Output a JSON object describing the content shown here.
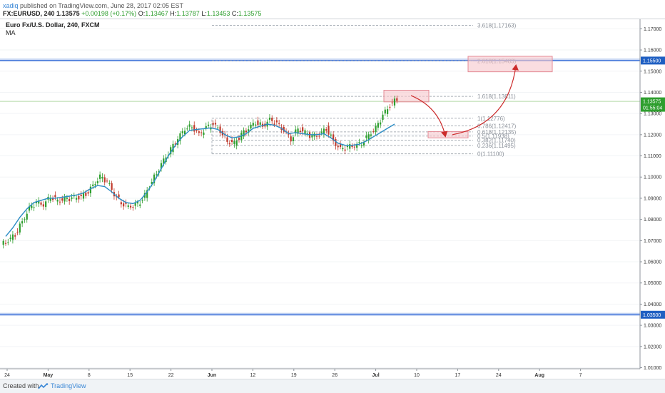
{
  "header": {
    "publisher_user": "xadiq",
    "published_text": "published on TradingView.com, June 28, 2017 02:05 EST",
    "symbol": "FX:EURUSD, 240",
    "last": "1.13575",
    "change": "+0.00198 (+0.17%)",
    "open_label": "O:",
    "open": "1.13467",
    "high_label": "H:",
    "high": "1.13787",
    "low_label": "L:",
    "low": "1.13453",
    "close_label": "C:",
    "close": "1.13575"
  },
  "legend": {
    "title": "Euro Fx/U.S. Dollar, 240, FXCM",
    "indicator": "MA"
  },
  "footer": {
    "created_with": "Created with",
    "brand": "TradingView"
  },
  "colors": {
    "up": "#2e9e2e",
    "down": "#c0392b",
    "ma": "#2b8cc4",
    "hline": "#3a6fd8",
    "fib": "#aab0b8",
    "arrow": "#cc2b2b",
    "box_fill": "#f7c6cc",
    "box_stroke": "#e48a95",
    "price_tag_bg": "#1f5fc2",
    "last_tag_bg": "#2e9e2e"
  },
  "chart_data": {
    "type": "line",
    "note_type": "candlestick",
    "y_ticks": [
      "1.17000",
      "1.16000",
      "1.15000",
      "1.14000",
      "1.13000",
      "1.12000",
      "1.11000",
      "1.10000",
      "1.09000",
      "1.08000",
      "1.07000",
      "1.06000",
      "1.05000",
      "1.04000",
      "1.03000",
      "1.02000",
      "1.01000"
    ],
    "ylim": [
      1.0095,
      1.1745
    ],
    "x_ticks": [
      "24",
      "May",
      "8",
      "15",
      "22",
      "Jun",
      "12",
      "19",
      "26",
      "Jul",
      "10",
      "17",
      "24",
      "Aug",
      "7"
    ],
    "price_tags": {
      "upper_level": "1.15500",
      "lower_level": "1.03500",
      "last": "1.13575",
      "countdown": "01:55:04"
    },
    "horizontal_levels": [
      1.155,
      1.035
    ],
    "last_price": 1.13575,
    "fib_levels": [
      {
        "ratio": "3.618",
        "value": "1.17163",
        "label": "3.618(1.17163)"
      },
      {
        "ratio": "2.618",
        "value": "1.15483",
        "label": "2.618(1.15483)"
      },
      {
        "ratio": "1.618",
        "value": "1.13811",
        "label": "1.618(1.13811)"
      },
      {
        "ratio": "1",
        "value": "1.12776",
        "label": "1(1.12776)"
      },
      {
        "ratio": "0.786",
        "value": "1.12417",
        "label": "0.786(1.12417)"
      },
      {
        "ratio": "0.618",
        "value": "1.12135",
        "label": "0.618(1.12135)"
      },
      {
        "ratio": "0.5",
        "value": "1.11938",
        "label": "0.5(1.11938)"
      },
      {
        "ratio": "0.382",
        "value": "1.11740",
        "label": "0.382(1.11740)"
      },
      {
        "ratio": "0.236",
        "value": "1.11495",
        "label": "0.236(1.11495)"
      },
      {
        "ratio": "0",
        "value": "1.11100",
        "label": "0(1.11100)"
      }
    ],
    "price_path": [
      1.07,
      1.073,
      1.079,
      1.085,
      1.088,
      1.087,
      1.091,
      1.089,
      1.0895,
      1.09,
      1.0905,
      1.092,
      1.096,
      1.1,
      1.098,
      1.092,
      1.088,
      1.086,
      1.0865,
      1.089,
      1.096,
      1.102,
      1.108,
      1.113,
      1.118,
      1.123,
      1.124,
      1.12,
      1.123,
      1.125,
      1.122,
      1.117,
      1.116,
      1.12,
      1.123,
      1.126,
      1.124,
      1.127,
      1.125,
      1.122,
      1.118,
      1.123,
      1.121,
      1.119,
      1.12,
      1.123,
      1.117,
      1.113,
      1.114,
      1.115,
      1.116,
      1.12,
      1.123,
      1.129,
      1.134,
      1.137
    ],
    "ma_path": [
      1.072,
      1.076,
      1.081,
      1.085,
      1.088,
      1.089,
      1.09,
      1.09,
      1.0905,
      1.091,
      1.0915,
      1.0925,
      1.0945,
      1.096,
      1.0955,
      1.093,
      1.09,
      1.088,
      1.0875,
      1.089,
      1.093,
      1.098,
      1.104,
      1.11,
      1.115,
      1.119,
      1.122,
      1.1225,
      1.1228,
      1.1232,
      1.1225,
      1.12,
      1.1185,
      1.119,
      1.1205,
      1.123,
      1.124,
      1.125,
      1.1245,
      1.123,
      1.1205,
      1.121,
      1.1205,
      1.12,
      1.12,
      1.1205,
      1.1185,
      1.116,
      1.115,
      1.115,
      1.1155,
      1.117,
      1.119,
      1.121,
      1.123,
      1.125
    ]
  }
}
